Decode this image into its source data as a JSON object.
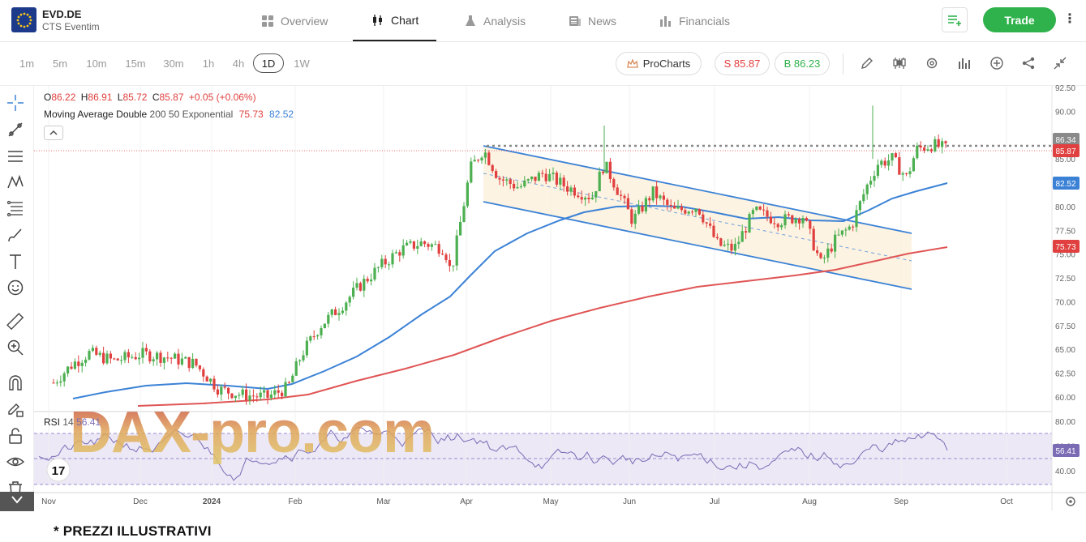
{
  "header": {
    "symbol": "EVD.DE",
    "company": "CTS Eventim",
    "tabs": [
      {
        "label": "Overview",
        "icon": "dashboard-icon",
        "active": false
      },
      {
        "label": "Chart",
        "icon": "candlestick-icon",
        "active": true
      },
      {
        "label": "Analysis",
        "icon": "flask-icon",
        "active": false
      },
      {
        "label": "News",
        "icon": "newspaper-icon",
        "active": false
      },
      {
        "label": "Financials",
        "icon": "bar-chart-icon",
        "active": false
      }
    ],
    "trade_label": "Trade",
    "accent": "#2fb24c"
  },
  "toolbar": {
    "timeframes": [
      "1m",
      "5m",
      "10m",
      "15m",
      "30m",
      "1h",
      "4h",
      "1D",
      "1W"
    ],
    "active_timeframe": "1D",
    "prochart_label": "ProCharts",
    "sell_label": "S 85.87",
    "buy_label": "B 86.23",
    "sell_color": "#e0403f",
    "buy_color": "#2fb24c"
  },
  "legend": {
    "o_label": "O",
    "o_value": "86.22",
    "h_label": "H",
    "h_value": "86.91",
    "l_label": "L",
    "l_value": "85.72",
    "c_label": "C",
    "c_value": "85.87",
    "change": "+0.05 (+0.06%)",
    "indicator_name": "Moving Average Double",
    "indicator_params": "200 50 Exponential",
    "ma200_value": "75.73",
    "ma50_value": "82.52",
    "rsi_label": "RSI",
    "rsi_period": "14",
    "rsi_value": "56.41"
  },
  "chart_data": {
    "type": "candlestick",
    "price_axis_ticks": [
      "92.50",
      "90.00",
      "87.50",
      "85.00",
      "82.50",
      "80.00",
      "77.50",
      "75.00",
      "72.50",
      "70.00",
      "67.50",
      "65.00",
      "62.50",
      "60.00"
    ],
    "rsi_axis_ticks": [
      "80.00",
      "60.00",
      "40.00"
    ],
    "time_axis_labels": [
      "Nov",
      "Dec",
      "2024",
      "Feb",
      "Mar",
      "Apr",
      "May",
      "Jun",
      "Jul",
      "Aug",
      "Sep",
      "Oct"
    ],
    "price_badges": [
      {
        "label": "86.34",
        "color": "#8a8a8a"
      },
      {
        "label": "85.87",
        "color": "#e0403f"
      },
      {
        "label": "82.52",
        "color": "#3b82d6"
      },
      {
        "label": "75.73",
        "color": "#e0403f"
      }
    ],
    "rsi_badge": {
      "label": "56.41",
      "color": "#7b6bb5"
    },
    "ma50_color": "#3b82d6",
    "ma200_color": "#e05555",
    "up_color": "#4caf50",
    "down_color": "#e0403f",
    "channel_color": "#3b82d6",
    "rsi_color": "#7b6bb5"
  },
  "watermark": "DAX-pro.com",
  "footnote": "* PREZZI ILLUSTRATIVI"
}
